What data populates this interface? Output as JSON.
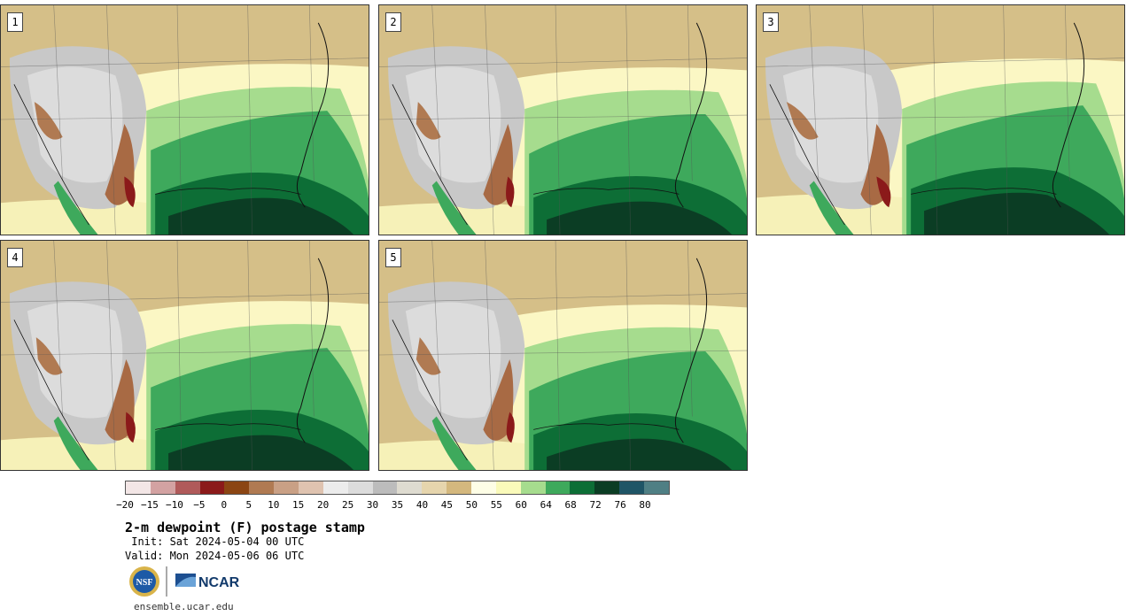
{
  "panels": [
    {
      "label": "1"
    },
    {
      "label": "2"
    },
    {
      "label": "3"
    },
    {
      "label": "4"
    },
    {
      "label": "5"
    }
  ],
  "colorbar": {
    "colors": [
      "#f3e6e6",
      "#d3a2a2",
      "#b05a5a",
      "#8b1a1a",
      "#8b4513",
      "#b07a52",
      "#c9a085",
      "#dfc3b0",
      "#ececec",
      "#dcdcdc",
      "#bcbcbc",
      "#dedbd0",
      "#e6d5ad",
      "#d4b87e",
      "#fefee6",
      "#fafaba",
      "#a6dc8e",
      "#3ea95c",
      "#0d6e36",
      "#0b3d24",
      "#1f5566",
      "#4f7f84"
    ],
    "ticks": [
      "−20",
      "−15",
      "−10",
      "−5",
      "0",
      "5",
      "10",
      "15",
      "20",
      "25",
      "30",
      "35",
      "40",
      "45",
      "50",
      "55",
      "60",
      "64",
      "68",
      "72",
      "76",
      "80"
    ]
  },
  "title": "2-m dewpoint (F) postage stamp",
  "init": " Init: Sat 2024-05-04 00 UTC",
  "valid": "Valid: Mon 2024-05-06 06 UTC",
  "logos": {
    "nsf": "NSF",
    "ncar": "NCAR"
  },
  "site": "ensemble.ucar.edu"
}
